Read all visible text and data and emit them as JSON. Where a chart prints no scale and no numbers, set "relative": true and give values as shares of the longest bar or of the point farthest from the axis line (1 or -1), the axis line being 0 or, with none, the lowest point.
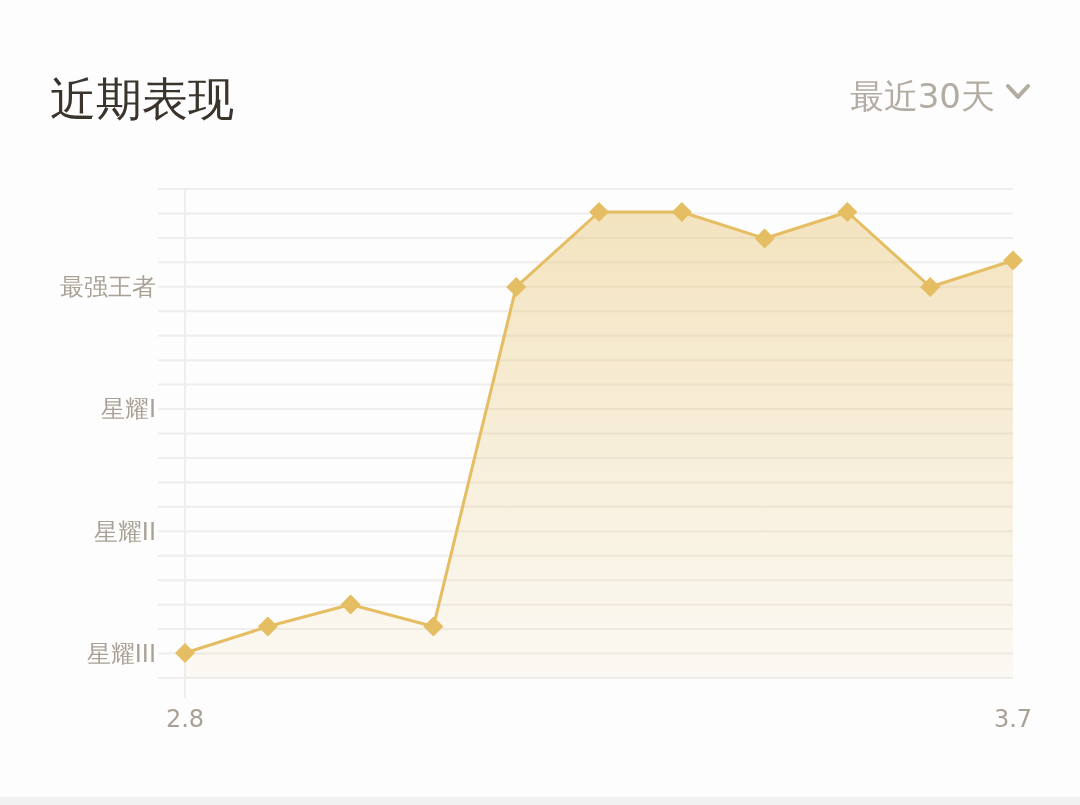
{
  "chart_data": {
    "type": "area",
    "title": "近期表现",
    "relative": true,
    "annotations": [
      "最近30天",
      "星耀III",
      "星耀II",
      "星耀I",
      "最强王者"
    ],
    "categories": [
      "2.8",
      null,
      null,
      null,
      null,
      null,
      null,
      null,
      null,
      null,
      "3.7"
    ],
    "series": [
      {
        "color": "#e5bd62",
        "values": [
          0,
          0.06,
          0.11,
          0.06,
          0.83,
          1,
          1,
          0.94,
          1,
          0.83,
          0.89
        ]
      }
    ],
    "grid": true,
    "marker": "diamond",
    "line_style": "solid"
  }
}
